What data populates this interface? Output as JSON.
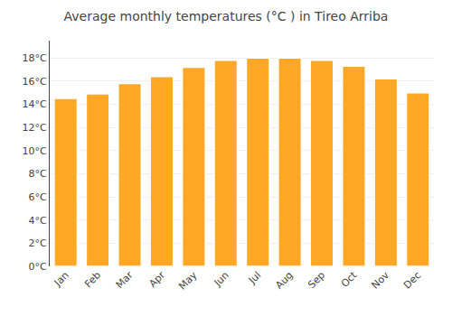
{
  "chart_data": {
    "type": "bar",
    "title": "Average monthly temperatures (°C ) in Tireo Arriba",
    "categories": [
      "Jan",
      "Feb",
      "Mar",
      "Apr",
      "May",
      "Jun",
      "Jul",
      "Aug",
      "Sep",
      "Oct",
      "Nov",
      "Dec"
    ],
    "values": [
      14.5,
      14.9,
      15.8,
      16.4,
      17.2,
      17.8,
      18.0,
      18.0,
      17.8,
      17.3,
      16.2,
      15.0
    ],
    "color": "#FFA726",
    "ylim": [
      0,
      19.5
    ],
    "yticks": [
      {
        "value": 0,
        "label": "0°C"
      },
      {
        "value": 2,
        "label": "2°C"
      },
      {
        "value": 4,
        "label": "4°C"
      },
      {
        "value": 6,
        "label": "6°C"
      },
      {
        "value": 8,
        "label": "8°C"
      },
      {
        "value": 10,
        "label": "10°C"
      },
      {
        "value": 12,
        "label": "12°C"
      },
      {
        "value": 14,
        "label": "14°C"
      },
      {
        "value": 16,
        "label": "16°C"
      },
      {
        "value": 18,
        "label": "18°C"
      }
    ],
    "grid": true
  }
}
